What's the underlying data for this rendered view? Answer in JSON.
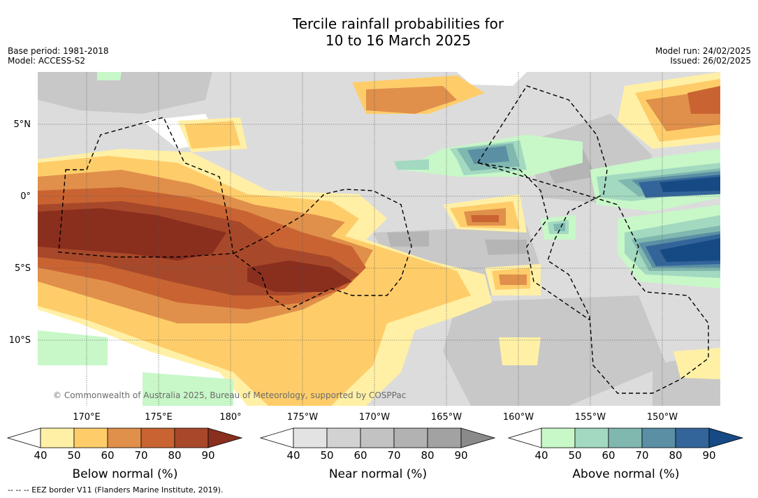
{
  "title_line1": "Tercile rainfall probabilities for",
  "title_line2": "10 to 16 March 2025",
  "base_period": "Base period: 1981-2018",
  "model": "Model: ACCESS-S2",
  "model_run": "Model run: 24/02/2025",
  "issued": "Issued: 26/02/2025",
  "lat_labels": [
    "5°N",
    "0°",
    "5°S",
    "10°S"
  ],
  "lon_labels": [
    "170°E",
    "175°E",
    "180°",
    "175°W",
    "170°W",
    "165°W",
    "160°W",
    "155°W",
    "150°W"
  ],
  "copyright": "© Commonwealth of Australia 2025, Bureau of Meteorology, supported by COSPPac",
  "colorbars": [
    {
      "title": "Below normal (%)",
      "ticks": [
        "40",
        "50",
        "60",
        "70",
        "80",
        "90"
      ],
      "colors": [
        "#fff0a6",
        "#fecd6a",
        "#e0904a",
        "#c96432",
        "#a8482a",
        "#8a2e1e"
      ]
    },
    {
      "title": "Near normal (%)",
      "ticks": [
        "40",
        "50",
        "60",
        "70",
        "80",
        "90"
      ],
      "colors": [
        "#e3e3e3",
        "#d2d2d2",
        "#c2c2c2",
        "#b2b2b2",
        "#a2a2a2",
        "#8a8a8a"
      ]
    },
    {
      "title": "Above normal (%)",
      "ticks": [
        "40",
        "50",
        "60",
        "70",
        "80",
        "90"
      ],
      "colors": [
        "#c8f7c8",
        "#a2d9c0",
        "#80b8b0",
        "#5a8fa4",
        "#33659a",
        "#164a84"
      ]
    }
  ],
  "footnote": "-- -- -- EEZ border V11 (Flanders Marine Institute, 2019)."
}
